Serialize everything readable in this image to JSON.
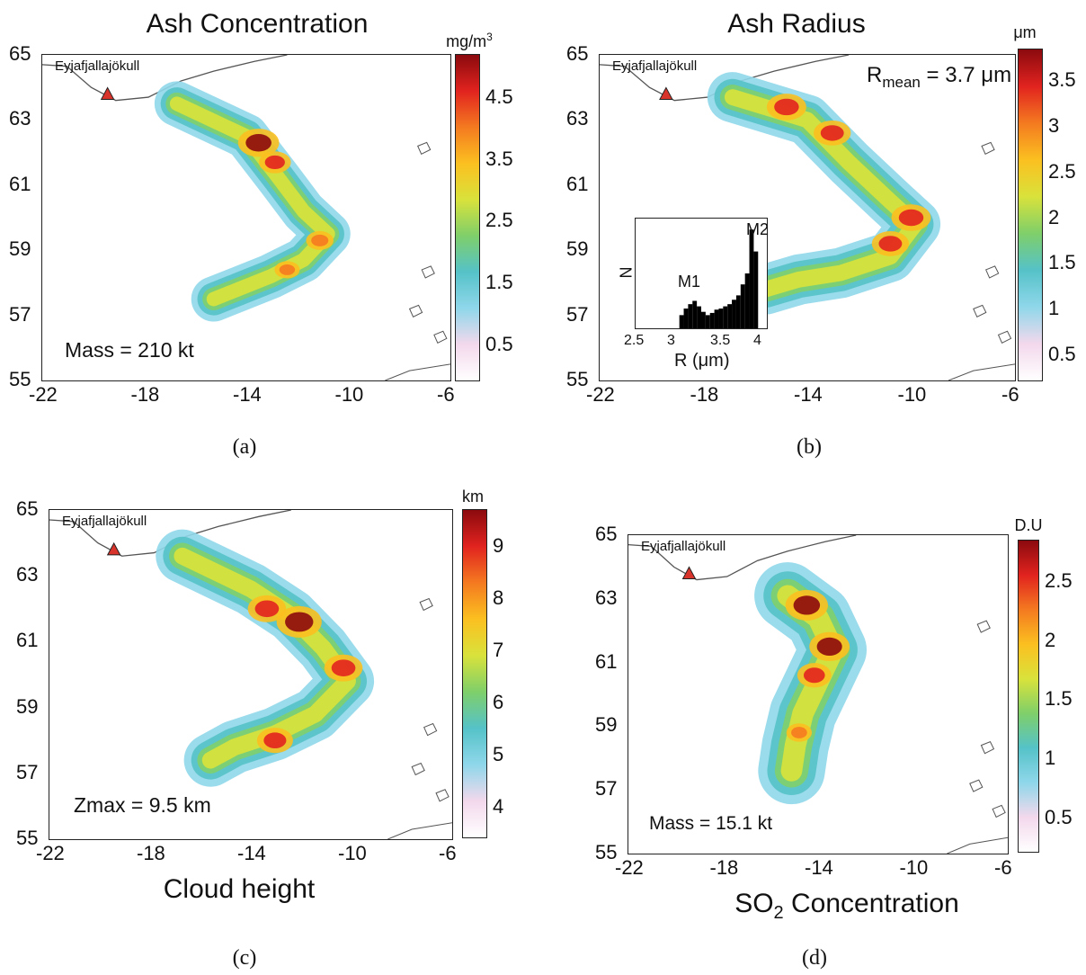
{
  "volcano_name": "Eyjafjallajökull",
  "x_ticks": [
    "-22",
    "-18",
    "-14",
    "-10",
    "-6"
  ],
  "y_ticks": [
    "65",
    "63",
    "61",
    "59",
    "57",
    "55"
  ],
  "panels": {
    "a": {
      "title": "Ash Concentration",
      "label": "(a)",
      "unit": "mg/m",
      "unit_sup": "3",
      "note": "Mass = 210 kt",
      "colorbar_ticks": [
        "4.5",
        "3.5",
        "2.5",
        "1.5",
        "0.5"
      ]
    },
    "b": {
      "title": "Ash Radius",
      "label": "(b)",
      "unit": "μm",
      "note_prefix": "R",
      "note_sub": "mean",
      "note_suffix": " = 3.7 μm",
      "colorbar_ticks": [
        "3.5",
        "3",
        "2.5",
        "2",
        "1.5",
        "1",
        "0.5"
      ]
    },
    "c": {
      "title": "Cloud height",
      "label": "(c)",
      "unit": "km",
      "note": "Zmax = 9.5 km",
      "colorbar_ticks": [
        "9",
        "8",
        "7",
        "6",
        "5",
        "4"
      ]
    },
    "d": {
      "title_prefix": "SO",
      "title_sub": "2",
      "title_suffix": " Concentration",
      "label": "(d)",
      "unit": "D.U",
      "note": "Mass = 15.1 kt",
      "colorbar_ticks": [
        "2.5",
        "2",
        "1.5",
        "1",
        "0.5"
      ]
    }
  },
  "inset": {
    "ylabel": "N",
    "xlabel": "R (μm)",
    "x_ticks": [
      "2.5",
      "3",
      "3.5",
      "4"
    ],
    "mode1": "M1",
    "mode2": "M2",
    "chart_data": {
      "type": "bar",
      "x": [
        3.0,
        3.05,
        3.1,
        3.15,
        3.2,
        3.25,
        3.3,
        3.35,
        3.4,
        3.45,
        3.5,
        3.55,
        3.6,
        3.65,
        3.7,
        3.75,
        3.8,
        3.85
      ],
      "values": [
        0.12,
        0.18,
        0.22,
        0.25,
        0.2,
        0.15,
        0.12,
        0.14,
        0.17,
        0.18,
        0.2,
        0.22,
        0.26,
        0.3,
        0.4,
        0.5,
        0.9,
        0.7
      ],
      "xlim": [
        2.5,
        4.0
      ]
    }
  },
  "colors": {
    "colormap": [
      "#ffffff",
      "#f3d8ec",
      "#8fd7ea",
      "#55c2c8",
      "#7fcf6a",
      "#d9e23b",
      "#fbc020",
      "#f47a20",
      "#e1231f",
      "#8b0a0e"
    ],
    "volcano_marker": "#d9342b",
    "coast": "#555555",
    "histogram": "#000000"
  }
}
